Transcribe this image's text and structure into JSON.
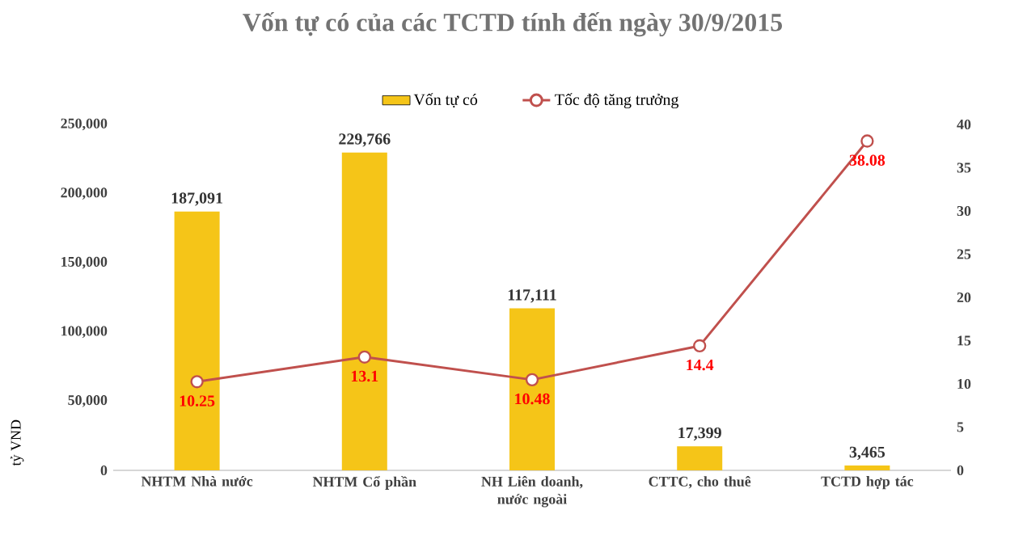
{
  "chart_data": {
    "type": "bar",
    "title": "Vốn tự có của các TCTD tính đến ngày 30/9/2015",
    "ylabel": "tỷ VND",
    "categories": [
      "NHTM Nhà nước",
      "NHTM Cổ phần",
      "NH Liên doanh, nước ngoài",
      "CTTC, cho thuê",
      "TCTD hợp tác"
    ],
    "series": [
      {
        "name": "Vốn tự có",
        "color": "#f5c518",
        "values": [
          187091,
          229766,
          117111,
          17399,
          3465
        ],
        "value_labels": [
          "187,091",
          "229,766",
          "117,111",
          "17,399",
          "3,465"
        ]
      },
      {
        "name": "Tốc độ tăng trưởng",
        "type": "line",
        "axis": "y2",
        "color": "#c0504d",
        "marker": "circle",
        "values": [
          10.25,
          13.1,
          10.48,
          14.4,
          38.08
        ],
        "value_labels": [
          "10.25",
          "13.1",
          "10.48",
          "14.4",
          "38.08"
        ]
      }
    ],
    "ylim": [
      0,
      250000
    ],
    "yticks": [
      0,
      {
        "value": 50000,
        "label": "50,000"
      },
      {
        "value": 100000,
        "label": "100,000"
      },
      {
        "value": 150000,
        "label": "150,000"
      },
      {
        "value": 200000,
        "label": "200,000"
      },
      {
        "value": 250000,
        "label": "250,000"
      }
    ],
    "y2lim": [
      0,
      40
    ],
    "y2ticks": [
      0,
      5,
      10,
      15,
      20,
      25,
      30,
      35,
      40
    ],
    "legend": "top"
  }
}
